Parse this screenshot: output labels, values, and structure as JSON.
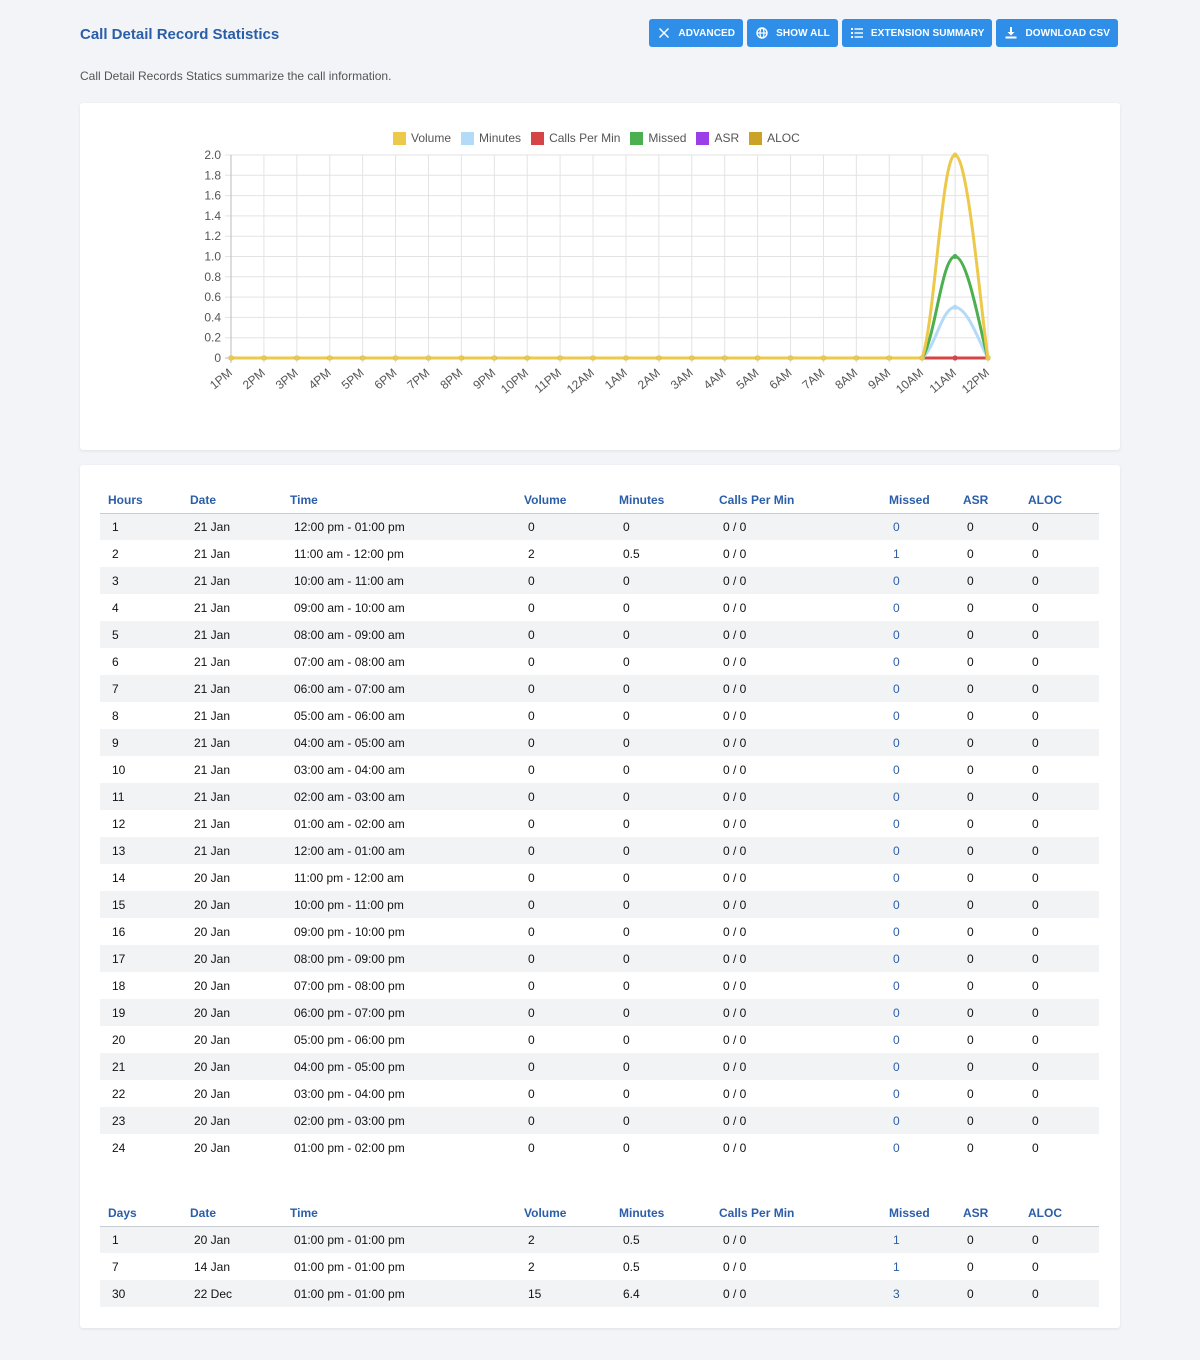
{
  "header": {
    "title": "Call Detail Record Statistics",
    "subtitle": "Call Detail Records Statics summarize the call information.",
    "buttons": [
      {
        "label": "Advanced",
        "icon": "tools-icon"
      },
      {
        "label": "Show All",
        "icon": "globe-icon"
      },
      {
        "label": "Extension Summary",
        "icon": "list-icon"
      },
      {
        "label": "Download CSV",
        "icon": "download-icon"
      }
    ]
  },
  "colors": {
    "accent": "#2f8fe8",
    "title": "#2b5ea8",
    "volume": "#ecc94b",
    "minutes": "#b3dbf7",
    "calls_per_min": "#d64545",
    "missed": "#4caf50",
    "asr": "#9b3ee8",
    "aloc": "#c9a227"
  },
  "chart_data": {
    "type": "line",
    "x": [
      "1PM",
      "2PM",
      "3PM",
      "4PM",
      "5PM",
      "6PM",
      "7PM",
      "8PM",
      "9PM",
      "10PM",
      "11PM",
      "12AM",
      "1AM",
      "2AM",
      "3AM",
      "4AM",
      "5AM",
      "6AM",
      "7AM",
      "8AM",
      "9AM",
      "10AM",
      "11AM",
      "12PM"
    ],
    "yticks": [
      "0",
      "0.2",
      "0.4",
      "0.6",
      "0.8",
      "1.0",
      "1.2",
      "1.4",
      "1.6",
      "1.8",
      "2.0"
    ],
    "ylim": [
      0,
      2
    ],
    "grid": true,
    "legend_position": "top",
    "series": [
      {
        "name": "Volume",
        "color": "#ecc94b",
        "values": [
          0,
          0,
          0,
          0,
          0,
          0,
          0,
          0,
          0,
          0,
          0,
          0,
          0,
          0,
          0,
          0,
          0,
          0,
          0,
          0,
          0,
          0,
          2,
          0
        ]
      },
      {
        "name": "Minutes",
        "color": "#b3dbf7",
        "values": [
          0,
          0,
          0,
          0,
          0,
          0,
          0,
          0,
          0,
          0,
          0,
          0,
          0,
          0,
          0,
          0,
          0,
          0,
          0,
          0,
          0,
          0,
          0.5,
          0
        ]
      },
      {
        "name": "Calls Per Min",
        "color": "#d64545",
        "values": [
          0,
          0,
          0,
          0,
          0,
          0,
          0,
          0,
          0,
          0,
          0,
          0,
          0,
          0,
          0,
          0,
          0,
          0,
          0,
          0,
          0,
          0,
          0,
          0
        ]
      },
      {
        "name": "Missed",
        "color": "#4caf50",
        "values": [
          0,
          0,
          0,
          0,
          0,
          0,
          0,
          0,
          0,
          0,
          0,
          0,
          0,
          0,
          0,
          0,
          0,
          0,
          0,
          0,
          0,
          0,
          1,
          0
        ]
      },
      {
        "name": "ASR",
        "color": "#9b3ee8",
        "values": [
          0,
          0,
          0,
          0,
          0,
          0,
          0,
          0,
          0,
          0,
          0,
          0,
          0,
          0,
          0,
          0,
          0,
          0,
          0,
          0,
          0,
          0,
          0,
          0
        ]
      },
      {
        "name": "ALOC",
        "color": "#c9a227",
        "values": [
          0,
          0,
          0,
          0,
          0,
          0,
          0,
          0,
          0,
          0,
          0,
          0,
          0,
          0,
          0,
          0,
          0,
          0,
          0,
          0,
          0,
          0,
          0,
          0
        ]
      }
    ]
  },
  "hours_table": {
    "columns": [
      "Hours",
      "Date",
      "Time",
      "Volume",
      "Minutes",
      "Calls Per Min",
      "Missed",
      "ASR",
      "ALOC"
    ],
    "rows": [
      [
        "1",
        "21 Jan",
        "12:00 pm - 01:00 pm",
        "0",
        "0",
        "0 / 0",
        "0",
        "0",
        "0"
      ],
      [
        "2",
        "21 Jan",
        "11:00 am - 12:00 pm",
        "2",
        "0.5",
        "0 / 0",
        "1",
        "0",
        "0"
      ],
      [
        "3",
        "21 Jan",
        "10:00 am - 11:00 am",
        "0",
        "0",
        "0 / 0",
        "0",
        "0",
        "0"
      ],
      [
        "4",
        "21 Jan",
        "09:00 am - 10:00 am",
        "0",
        "0",
        "0 / 0",
        "0",
        "0",
        "0"
      ],
      [
        "5",
        "21 Jan",
        "08:00 am - 09:00 am",
        "0",
        "0",
        "0 / 0",
        "0",
        "0",
        "0"
      ],
      [
        "6",
        "21 Jan",
        "07:00 am - 08:00 am",
        "0",
        "0",
        "0 / 0",
        "0",
        "0",
        "0"
      ],
      [
        "7",
        "21 Jan",
        "06:00 am - 07:00 am",
        "0",
        "0",
        "0 / 0",
        "0",
        "0",
        "0"
      ],
      [
        "8",
        "21 Jan",
        "05:00 am - 06:00 am",
        "0",
        "0",
        "0 / 0",
        "0",
        "0",
        "0"
      ],
      [
        "9",
        "21 Jan",
        "04:00 am - 05:00 am",
        "0",
        "0",
        "0 / 0",
        "0",
        "0",
        "0"
      ],
      [
        "10",
        "21 Jan",
        "03:00 am - 04:00 am",
        "0",
        "0",
        "0 / 0",
        "0",
        "0",
        "0"
      ],
      [
        "11",
        "21 Jan",
        "02:00 am - 03:00 am",
        "0",
        "0",
        "0 / 0",
        "0",
        "0",
        "0"
      ],
      [
        "12",
        "21 Jan",
        "01:00 am - 02:00 am",
        "0",
        "0",
        "0 / 0",
        "0",
        "0",
        "0"
      ],
      [
        "13",
        "21 Jan",
        "12:00 am - 01:00 am",
        "0",
        "0",
        "0 / 0",
        "0",
        "0",
        "0"
      ],
      [
        "14",
        "20 Jan",
        "11:00 pm - 12:00 am",
        "0",
        "0",
        "0 / 0",
        "0",
        "0",
        "0"
      ],
      [
        "15",
        "20 Jan",
        "10:00 pm - 11:00 pm",
        "0",
        "0",
        "0 / 0",
        "0",
        "0",
        "0"
      ],
      [
        "16",
        "20 Jan",
        "09:00 pm - 10:00 pm",
        "0",
        "0",
        "0 / 0",
        "0",
        "0",
        "0"
      ],
      [
        "17",
        "20 Jan",
        "08:00 pm - 09:00 pm",
        "0",
        "0",
        "0 / 0",
        "0",
        "0",
        "0"
      ],
      [
        "18",
        "20 Jan",
        "07:00 pm - 08:00 pm",
        "0",
        "0",
        "0 / 0",
        "0",
        "0",
        "0"
      ],
      [
        "19",
        "20 Jan",
        "06:00 pm - 07:00 pm",
        "0",
        "0",
        "0 / 0",
        "0",
        "0",
        "0"
      ],
      [
        "20",
        "20 Jan",
        "05:00 pm - 06:00 pm",
        "0",
        "0",
        "0 / 0",
        "0",
        "0",
        "0"
      ],
      [
        "21",
        "20 Jan",
        "04:00 pm - 05:00 pm",
        "0",
        "0",
        "0 / 0",
        "0",
        "0",
        "0"
      ],
      [
        "22",
        "20 Jan",
        "03:00 pm - 04:00 pm",
        "0",
        "0",
        "0 / 0",
        "0",
        "0",
        "0"
      ],
      [
        "23",
        "20 Jan",
        "02:00 pm - 03:00 pm",
        "0",
        "0",
        "0 / 0",
        "0",
        "0",
        "0"
      ],
      [
        "24",
        "20 Jan",
        "01:00 pm - 02:00 pm",
        "0",
        "0",
        "0 / 0",
        "0",
        "0",
        "0"
      ]
    ]
  },
  "days_table": {
    "columns": [
      "Days",
      "Date",
      "Time",
      "Volume",
      "Minutes",
      "Calls Per Min",
      "Missed",
      "ASR",
      "ALOC"
    ],
    "rows": [
      [
        "1",
        "20 Jan",
        "01:00 pm - 01:00 pm",
        "2",
        "0.5",
        "0 / 0",
        "1",
        "0",
        "0"
      ],
      [
        "7",
        "14 Jan",
        "01:00 pm - 01:00 pm",
        "2",
        "0.5",
        "0 / 0",
        "1",
        "0",
        "0"
      ],
      [
        "30",
        "22 Dec",
        "01:00 pm - 01:00 pm",
        "15",
        "6.4",
        "0 / 0",
        "3",
        "0",
        "0"
      ]
    ]
  }
}
